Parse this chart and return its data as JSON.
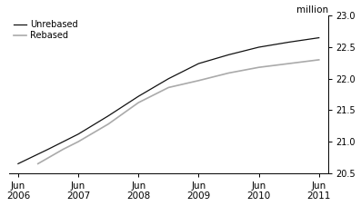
{
  "title": "",
  "ylabel_right": "million",
  "ylim": [
    20.5,
    23.0
  ],
  "yticks": [
    20.5,
    21.0,
    21.5,
    22.0,
    22.5,
    23.0
  ],
  "xtick_labels": [
    "Jun\n2006",
    "Jun\n2007",
    "Jun\n2008",
    "Jun\n2009",
    "Jun\n2010",
    "Jun\n2011"
  ],
  "xtick_positions": [
    0,
    1,
    2,
    3,
    4,
    5
  ],
  "legend_labels": [
    "Unrebased",
    "Rebased"
  ],
  "unrebased_color": "#111111",
  "rebased_color": "#aaaaaa",
  "background_color": "#ffffff",
  "unrebased_x": [
    0.0,
    0.5,
    1.0,
    1.5,
    2.0,
    2.5,
    3.0,
    3.5,
    4.0,
    4.5,
    5.0
  ],
  "unrebased_y": [
    20.65,
    20.88,
    21.12,
    21.41,
    21.72,
    22.0,
    22.24,
    22.38,
    22.5,
    22.58,
    22.65
  ],
  "rebased_x": [
    0.33,
    0.75,
    1.0,
    1.5,
    2.0,
    2.5,
    3.0,
    3.5,
    4.0,
    4.5,
    5.0
  ],
  "rebased_y": [
    20.65,
    20.88,
    21.0,
    21.28,
    21.62,
    21.86,
    21.97,
    22.09,
    22.18,
    22.24,
    22.3
  ]
}
